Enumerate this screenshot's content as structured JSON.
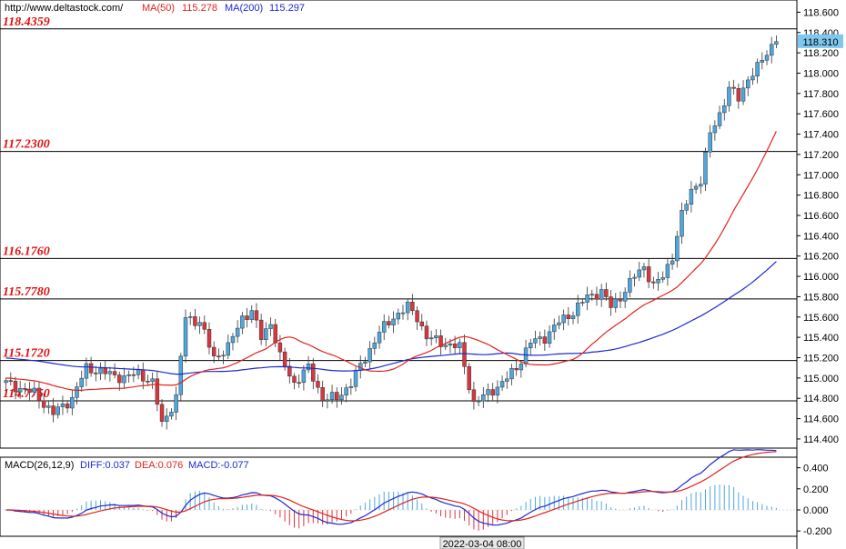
{
  "header": {
    "url": "http://www.deltastock.com/",
    "ma50_label": "MA(50)",
    "ma50_value": "115.278",
    "ma200_label": "MA(200)",
    "ma200_value": "115.297"
  },
  "colors": {
    "up": "#4ea7dd",
    "down": "#d9363e",
    "ma50": "#e0231c",
    "ma200": "#1a2bd0",
    "levels_text": "#e01010",
    "price_tag": "#7ec8ef"
  },
  "chart_data": [
    {
      "type": "candlestick",
      "title": "",
      "y_axis_side": "right",
      "ylim": [
        114.31,
        118.72
      ],
      "y_ticks": [
        "118.600",
        "118.400",
        "118.200",
        "118.000",
        "117.800",
        "117.600",
        "117.400",
        "117.200",
        "117.000",
        "116.800",
        "116.600",
        "116.400",
        "116.200",
        "116.000",
        "115.800",
        "115.600",
        "115.400",
        "115.200",
        "115.000",
        "114.800",
        "114.600",
        "114.400"
      ],
      "last_price": "118.310",
      "levels": [
        {
          "value": 118.4359,
          "label": "118.4359"
        },
        {
          "value": 117.23,
          "label": "117.2300"
        },
        {
          "value": 116.176,
          "label": "116.1760"
        },
        {
          "value": 115.778,
          "label": "115.7780"
        },
        {
          "value": 115.172,
          "label": "115.1720"
        },
        {
          "value": 114.775,
          "label": "114.7750"
        }
      ],
      "anchors": [
        [
          0,
          114.95
        ],
        [
          6,
          114.85
        ],
        [
          10,
          114.65
        ],
        [
          14,
          114.8
        ],
        [
          17,
          115.1
        ],
        [
          21,
          115.05
        ],
        [
          25,
          115.0
        ],
        [
          28,
          115.05
        ],
        [
          31,
          114.95
        ],
        [
          33,
          114.55
        ],
        [
          36,
          114.8
        ],
        [
          38,
          115.6
        ],
        [
          41,
          115.55
        ],
        [
          44,
          115.2
        ],
        [
          47,
          115.3
        ],
        [
          50,
          115.6
        ],
        [
          52,
          115.65
        ],
        [
          54,
          115.4
        ],
        [
          56,
          115.55
        ],
        [
          58,
          115.2
        ],
        [
          61,
          114.95
        ],
        [
          64,
          115.1
        ],
        [
          67,
          114.8
        ],
        [
          70,
          114.8
        ],
        [
          73,
          114.95
        ],
        [
          76,
          115.2
        ],
        [
          79,
          115.45
        ],
        [
          82,
          115.6
        ],
        [
          85,
          115.7
        ],
        [
          87,
          115.6
        ],
        [
          89,
          115.4
        ],
        [
          92,
          115.35
        ],
        [
          96,
          115.3
        ],
        [
          99,
          114.75
        ],
        [
          102,
          114.85
        ],
        [
          105,
          114.95
        ],
        [
          108,
          115.1
        ],
        [
          111,
          115.35
        ],
        [
          114,
          115.4
        ],
        [
          117,
          115.55
        ],
        [
          120,
          115.65
        ],
        [
          123,
          115.8
        ],
        [
          126,
          115.85
        ],
        [
          128,
          115.7
        ],
        [
          130,
          115.8
        ],
        [
          133,
          116.0
        ],
        [
          135,
          116.1
        ],
        [
          137,
          115.9
        ],
        [
          139,
          116.0
        ],
        [
          141,
          116.2
        ],
        [
          143,
          116.6
        ],
        [
          145,
          116.85
        ],
        [
          147,
          116.95
        ],
        [
          149,
          117.4
        ],
        [
          151,
          117.6
        ],
        [
          153,
          117.85
        ],
        [
          155,
          117.75
        ],
        [
          157,
          117.95
        ],
        [
          159,
          118.05
        ],
        [
          161,
          118.2
        ],
        [
          163,
          118.35
        ]
      ],
      "candle_count": 164,
      "ma50": {
        "name": "MA(50)",
        "value": 115.278
      },
      "ma200": {
        "name": "MA(200)",
        "value": 115.297
      }
    },
    {
      "type": "macd",
      "params": "MACD(26,12,9)",
      "diff_label": "DIFF:0.037",
      "dea_label": "DEA:0.076",
      "macd_label": "MACD:-0.077",
      "ylim": [
        -0.25,
        0.5
      ],
      "y_ticks": [
        "0.400",
        "0.200",
        "0.000",
        "-0.200"
      ]
    }
  ],
  "x_axis": {
    "cursor_time": "2022-03-04 08:00"
  }
}
